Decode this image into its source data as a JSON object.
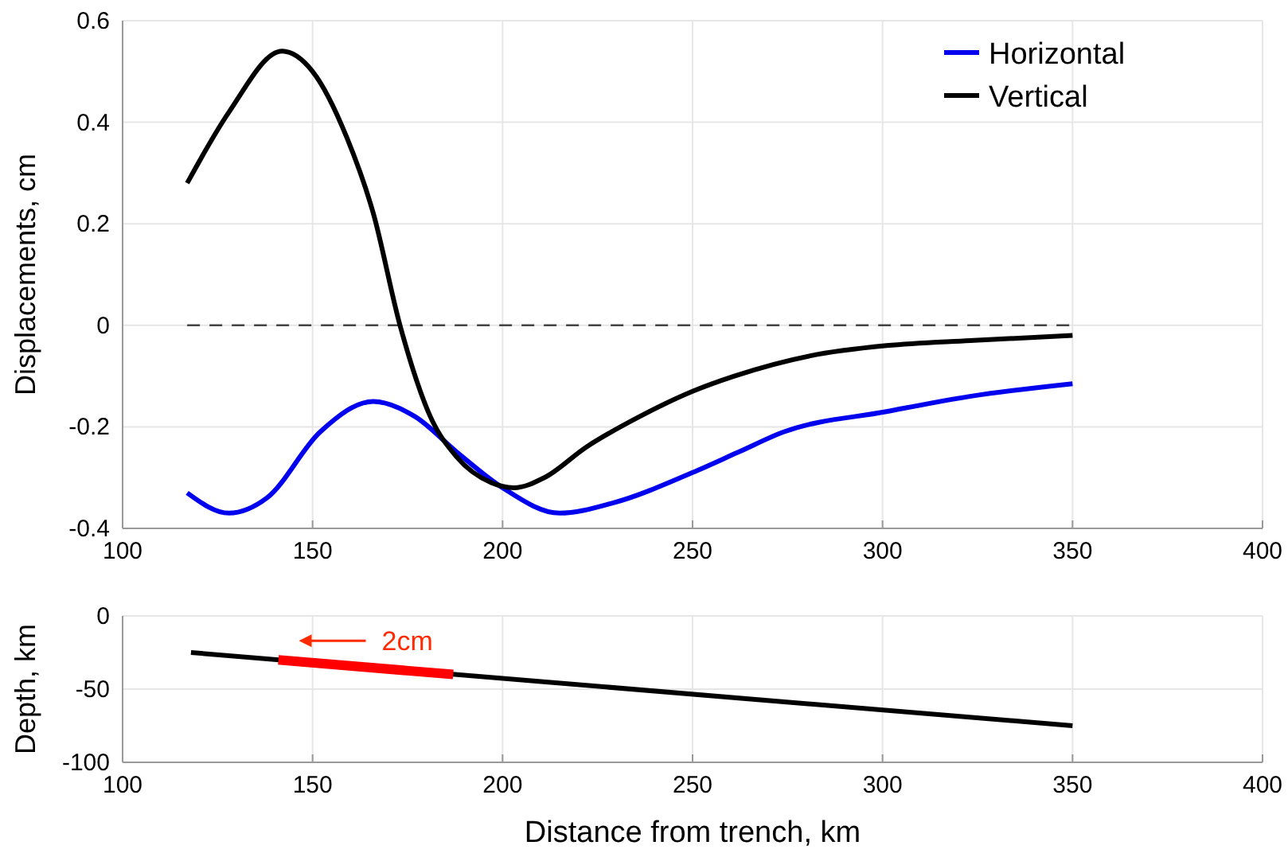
{
  "chart_data": [
    {
      "type": "line",
      "xlim": [
        100,
        400
      ],
      "xticks": [
        100,
        150,
        200,
        250,
        300,
        350,
        400
      ],
      "ylim": [
        -0.4,
        0.6
      ],
      "yticks": [
        -0.4,
        -0.2,
        0,
        0.2,
        0.4,
        0.6
      ],
      "ylabel": "Displacements, cm",
      "grid": true,
      "legend": "top right",
      "line_style": "solid",
      "ref_lines": [
        {
          "axis": "y",
          "value": 0,
          "line_style": "dashed",
          "color": "#444444"
        }
      ],
      "series": [
        {
          "name": "Horizontal",
          "color": "#0000ee",
          "x": [
            117,
            128,
            138,
            152,
            166,
            177,
            188,
            200,
            215,
            229,
            250,
            262,
            274,
            301,
            323,
            350
          ],
          "values": [
            -0.33,
            -0.37,
            -0.34,
            -0.21,
            -0.15,
            -0.18,
            -0.25,
            -0.32,
            -0.37,
            -0.35,
            -0.29,
            -0.25,
            -0.21,
            -0.17,
            -0.14,
            -0.115
          ]
        },
        {
          "name": "Vertical",
          "color": "#000000",
          "x": [
            117,
            128,
            142,
            150,
            159,
            166,
            173,
            181,
            188,
            197,
            203,
            211,
            222,
            236,
            250,
            261,
            281,
            301,
            323,
            350
          ],
          "values": [
            0.28,
            0.42,
            0.54,
            0.5,
            0.37,
            0.22,
            0,
            -0.18,
            -0.26,
            -0.31,
            -0.32,
            -0.3,
            -0.24,
            -0.18,
            -0.13,
            -0.1,
            -0.06,
            -0.04,
            -0.03,
            -0.02
          ]
        }
      ]
    },
    {
      "type": "line",
      "xlim": [
        100,
        400
      ],
      "xticks": [
        100,
        150,
        200,
        250,
        300,
        350,
        400
      ],
      "ylim": [
        -100,
        0
      ],
      "yticks": [
        -100,
        -50,
        0
      ],
      "xlabel": "Distance from trench, km",
      "ylabel": "Depth, km",
      "grid": true,
      "legend": false,
      "line_style": "solid",
      "annotations": [
        "2cm"
      ],
      "series": [
        {
          "color": "#000000",
          "x": [
            118,
            350
          ],
          "values": [
            -25,
            -75
          ]
        },
        {
          "color": "#ff0000",
          "x": [
            141,
            187
          ],
          "values": [
            -30,
            -40
          ]
        }
      ]
    }
  ]
}
